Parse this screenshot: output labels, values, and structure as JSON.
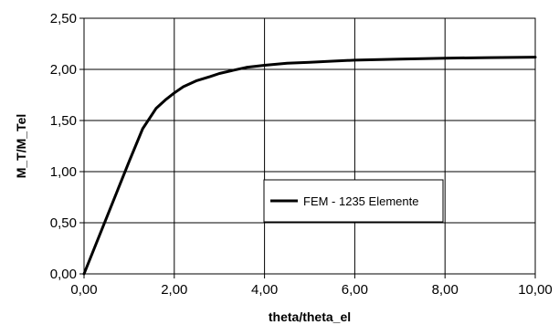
{
  "chart_data": {
    "type": "line",
    "title": "",
    "xlabel": "theta/theta_el",
    "ylabel": "M_T/M_Tel",
    "xlim": [
      0,
      10
    ],
    "ylim": [
      0,
      2.5
    ],
    "x_ticks": [
      "0,00",
      "2,00",
      "4,00",
      "6,00",
      "8,00",
      "10,00"
    ],
    "y_ticks": [
      "0,00",
      "0,50",
      "1,00",
      "1,50",
      "2,00",
      "2,50"
    ],
    "grid": true,
    "legend_position": "center-right",
    "series": [
      {
        "name": "FEM - 1235 Elemente",
        "color": "#000000",
        "x": [
          0,
          0.5,
          1.0,
          1.3,
          1.6,
          1.8,
          2.0,
          2.2,
          2.5,
          2.8,
          3.0,
          3.3,
          3.6,
          4.0,
          4.5,
          5.0,
          5.5,
          6.0,
          7.0,
          8.0,
          9.0,
          10.0
        ],
        "y": [
          0,
          0.55,
          1.1,
          1.42,
          1.62,
          1.7,
          1.77,
          1.83,
          1.89,
          1.93,
          1.96,
          1.99,
          2.02,
          2.04,
          2.06,
          2.07,
          2.08,
          2.09,
          2.1,
          2.11,
          2.115,
          2.12
        ]
      }
    ]
  }
}
